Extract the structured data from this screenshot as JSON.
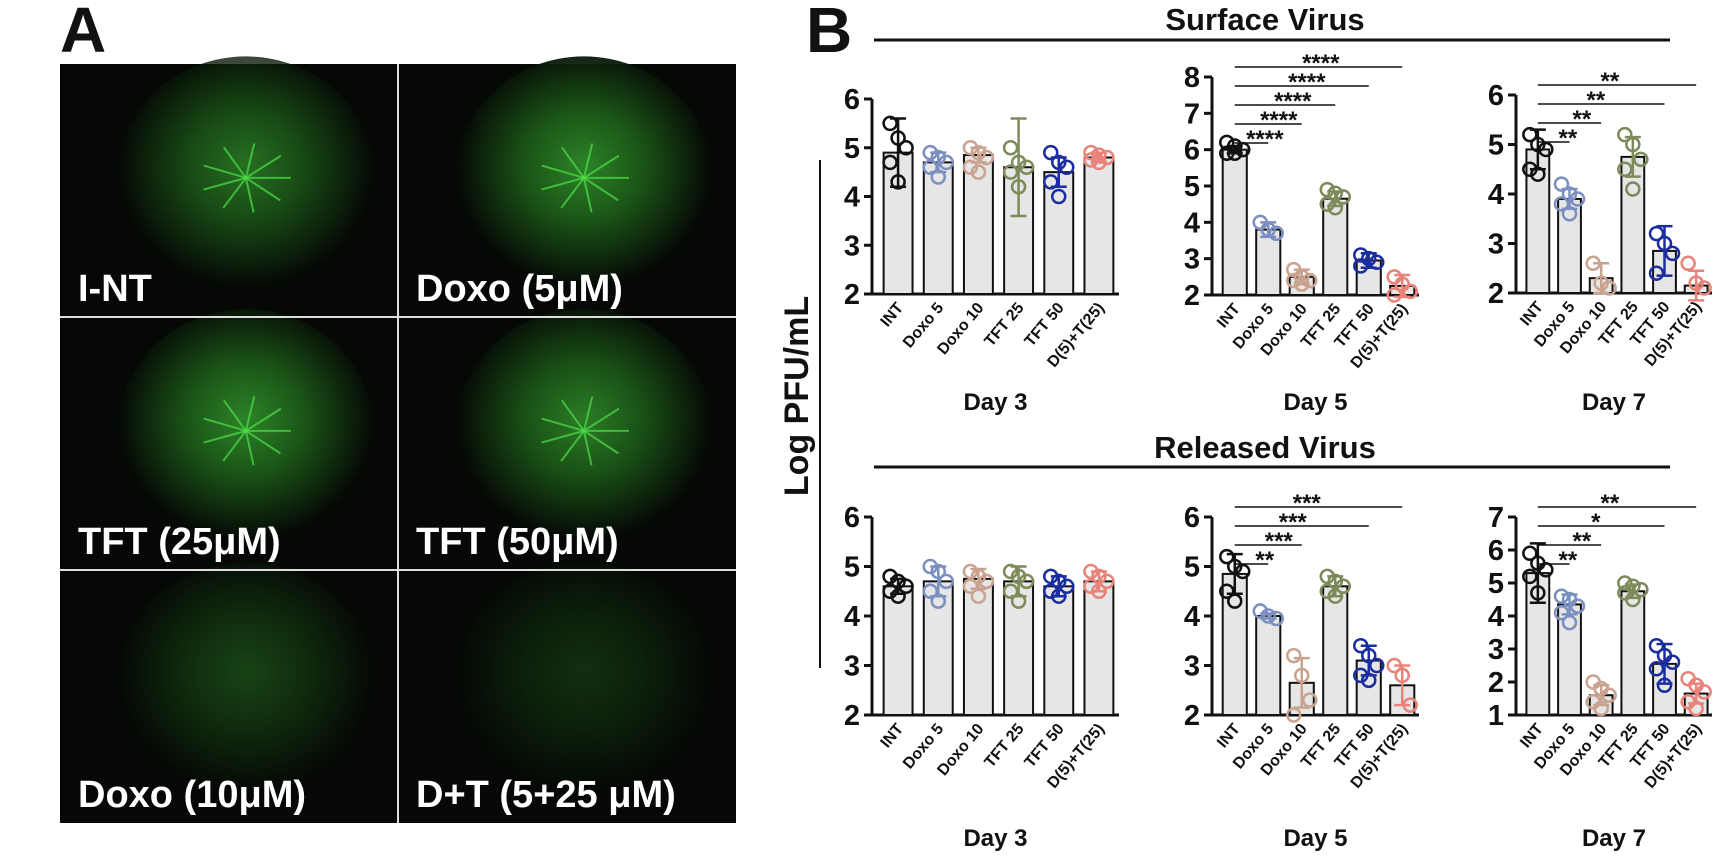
{
  "panel_a": {
    "label": "A",
    "images": [
      "I-NT",
      "Doxo (5μM)",
      "TFT (25μM)",
      "TFT (50μM)",
      "Doxo (10μM)",
      "D+T (5+25 μM)"
    ]
  },
  "panel_b": {
    "label": "B",
    "y_label": "Log PFU/mL",
    "groups": [
      "Surface Virus",
      "Released Virus"
    ]
  },
  "chart_data": [
    {
      "type": "bar",
      "group": 0,
      "x_label": "Day 3",
      "categories": [
        "INT",
        "Doxo 5",
        "Doxo 10",
        "TFT 25",
        "TFT 50",
        "D(5)+T(25)"
      ],
      "colors": [
        "#111111",
        "#7b8fc0",
        "#c9a38f",
        "#7d8a5a",
        "#1a2ea0",
        "#e8837a"
      ],
      "values": [
        4.9,
        4.7,
        4.85,
        4.6,
        4.5,
        4.8
      ],
      "errors": [
        0.7,
        0.2,
        0.15,
        1.0,
        0.3,
        0.1
      ],
      "points": [
        [
          5.5,
          5.2,
          5.0,
          4.7,
          4.3
        ],
        [
          4.9,
          4.8,
          4.7,
          4.6,
          4.4
        ],
        [
          5.0,
          4.9,
          4.8,
          4.6,
          4.5
        ],
        [
          5.0,
          4.7,
          4.6,
          4.5,
          4.2
        ],
        [
          4.9,
          4.7,
          4.6,
          4.3,
          4.0
        ],
        [
          4.9,
          4.85,
          4.8,
          4.75,
          4.7
        ]
      ],
      "ylim": [
        2,
        6
      ],
      "yticks": [
        2,
        3,
        4,
        5,
        6
      ],
      "annotations": []
    },
    {
      "type": "bar",
      "group": 0,
      "x_label": "Day 5",
      "categories": [
        "INT",
        "Doxo 5",
        "Doxo 10",
        "TFT 25",
        "TFT 50",
        "D(5)+T(25)"
      ],
      "colors": [
        "#111111",
        "#7b8fc0",
        "#c9a38f",
        "#7d8a5a",
        "#1a2ea0",
        "#e8837a"
      ],
      "values": [
        6.0,
        3.8,
        2.5,
        4.65,
        2.95,
        2.25
      ],
      "errors": [
        0.1,
        0.2,
        0.2,
        0.2,
        0.2,
        0.3
      ],
      "points": [
        [
          6.2,
          6.1,
          6.0,
          5.9,
          5.9
        ],
        [
          4.0,
          3.8,
          3.7
        ],
        [
          2.7,
          2.5,
          2.4,
          2.4,
          2.3
        ],
        [
          4.9,
          4.8,
          4.7,
          4.5,
          4.4
        ],
        [
          3.1,
          3.0,
          2.9,
          2.8
        ],
        [
          2.5,
          2.3,
          2.1,
          2.0
        ]
      ],
      "ylim": [
        2,
        8
      ],
      "yticks": [
        2,
        3,
        4,
        5,
        6,
        7,
        8
      ],
      "annotations": [
        {
          "label": "****",
          "between": [
            "INT",
            "Doxo 5"
          ]
        },
        {
          "label": "****",
          "between": [
            "INT",
            "Doxo 10"
          ]
        },
        {
          "label": "****",
          "between": [
            "INT",
            "TFT 25"
          ]
        },
        {
          "label": "****",
          "between": [
            "INT",
            "TFT 50"
          ]
        },
        {
          "label": "****",
          "between": [
            "INT",
            "D(5)+T(25)"
          ]
        }
      ]
    },
    {
      "type": "bar",
      "group": 0,
      "x_label": "Day 7",
      "categories": [
        "INT",
        "Doxo 5",
        "Doxo 10",
        "TFT 25",
        "TFT 50",
        "D(5)+T(25)"
      ],
      "colors": [
        "#111111",
        "#7b8fc0",
        "#c9a38f",
        "#7d8a5a",
        "#1a2ea0",
        "#e8837a"
      ],
      "values": [
        4.9,
        3.9,
        2.3,
        4.75,
        2.85,
        2.15
      ],
      "errors": [
        0.4,
        0.2,
        0.3,
        0.4,
        0.5,
        0.3
      ],
      "points": [
        [
          5.2,
          5.0,
          4.9,
          4.5,
          4.4
        ],
        [
          4.2,
          4.0,
          3.9,
          3.8,
          3.6
        ],
        [
          2.6,
          2.2,
          2.1
        ],
        [
          5.2,
          5.0,
          4.7,
          4.5,
          4.1
        ],
        [
          3.2,
          3.0,
          2.8,
          2.4
        ],
        [
          2.6,
          2.2,
          2.1
        ]
      ],
      "ylim": [
        2,
        6
      ],
      "yticks": [
        2,
        3,
        4,
        5,
        6
      ],
      "annotations": [
        {
          "label": "**",
          "between": [
            "INT",
            "Doxo 5"
          ]
        },
        {
          "label": "**",
          "between": [
            "INT",
            "Doxo 10"
          ]
        },
        {
          "label": "**",
          "between": [
            "INT",
            "TFT 50"
          ]
        },
        {
          "label": "**",
          "between": [
            "INT",
            "D(5)+T(25)"
          ]
        }
      ]
    },
    {
      "type": "bar",
      "group": 1,
      "x_label": "Day 3",
      "categories": [
        "INT",
        "Doxo 5",
        "Doxo 10",
        "TFT 25",
        "TFT 50",
        "D(5)+T(25)"
      ],
      "colors": [
        "#111111",
        "#7b8fc0",
        "#c9a38f",
        "#7d8a5a",
        "#1a2ea0",
        "#e8837a"
      ],
      "values": [
        4.6,
        4.7,
        4.75,
        4.7,
        4.6,
        4.7
      ],
      "errors": [
        0.15,
        0.3,
        0.2,
        0.3,
        0.2,
        0.2
      ],
      "points": [
        [
          4.8,
          4.7,
          4.6,
          4.5,
          4.4
        ],
        [
          5.0,
          4.9,
          4.7,
          4.5,
          4.3
        ],
        [
          4.9,
          4.8,
          4.7,
          4.6,
          4.4
        ],
        [
          4.9,
          4.8,
          4.7,
          4.5,
          4.3
        ],
        [
          4.8,
          4.7,
          4.6,
          4.5,
          4.4
        ],
        [
          4.9,
          4.8,
          4.7,
          4.6,
          4.5
        ]
      ],
      "ylim": [
        2,
        6
      ],
      "yticks": [
        2,
        3,
        4,
        5,
        6
      ],
      "annotations": []
    },
    {
      "type": "bar",
      "group": 1,
      "x_label": "Day 5",
      "categories": [
        "INT",
        "Doxo 5",
        "Doxo 10",
        "TFT 25",
        "TFT 50",
        "D(5)+T(25)"
      ],
      "colors": [
        "#111111",
        "#7b8fc0",
        "#c9a38f",
        "#7d8a5a",
        "#1a2ea0",
        "#e8837a"
      ],
      "values": [
        4.85,
        4.0,
        2.65,
        4.6,
        3.1,
        2.6
      ],
      "errors": [
        0.4,
        0.05,
        0.5,
        0.2,
        0.3,
        0.4
      ],
      "points": [
        [
          5.2,
          5.0,
          4.9,
          4.5,
          4.3
        ],
        [
          4.1,
          4.0,
          3.95
        ],
        [
          3.2,
          2.8,
          2.3,
          2.0
        ],
        [
          4.8,
          4.7,
          4.6,
          4.5,
          4.4
        ],
        [
          3.4,
          3.2,
          3.0,
          2.8,
          2.7
        ],
        [
          3.0,
          2.8,
          2.2
        ]
      ],
      "ylim": [
        2,
        6
      ],
      "yticks": [
        2,
        3,
        4,
        5,
        6
      ],
      "annotations": [
        {
          "label": "**",
          "between": [
            "INT",
            "Doxo 5"
          ]
        },
        {
          "label": "***",
          "between": [
            "INT",
            "Doxo 10"
          ]
        },
        {
          "label": "***",
          "between": [
            "INT",
            "TFT 50"
          ]
        },
        {
          "label": "***",
          "between": [
            "INT",
            "D(5)+T(25)"
          ]
        }
      ]
    },
    {
      "type": "bar",
      "group": 1,
      "x_label": "Day 7",
      "categories": [
        "INT",
        "Doxo 5",
        "Doxo 10",
        "TFT 25",
        "TFT 50",
        "D(5)+T(25)"
      ],
      "colors": [
        "#111111",
        "#7b8fc0",
        "#c9a38f",
        "#7d8a5a",
        "#1a2ea0",
        "#e8837a"
      ],
      "values": [
        5.3,
        4.35,
        1.6,
        4.75,
        2.55,
        1.65
      ],
      "errors": [
        0.9,
        0.3,
        0.3,
        0.2,
        0.6,
        0.3
      ],
      "points": [
        [
          5.9,
          5.6,
          5.4,
          5.2,
          4.7
        ],
        [
          4.6,
          4.5,
          4.3,
          4.1,
          3.8
        ],
        [
          2.0,
          1.8,
          1.6,
          1.4,
          1.2
        ],
        [
          5.0,
          4.9,
          4.8,
          4.7,
          4.5
        ],
        [
          3.1,
          2.8,
          2.6,
          2.4,
          1.9
        ],
        [
          2.1,
          1.9,
          1.7,
          1.4,
          1.2
        ]
      ],
      "ylim": [
        1,
        7
      ],
      "yticks": [
        1,
        2,
        3,
        4,
        5,
        6,
        7
      ],
      "annotations": [
        {
          "label": "**",
          "between": [
            "INT",
            "Doxo 5"
          ]
        },
        {
          "label": "**",
          "between": [
            "INT",
            "Doxo 10"
          ]
        },
        {
          "label": "*",
          "between": [
            "INT",
            "TFT 50"
          ]
        },
        {
          "label": "**",
          "between": [
            "INT",
            "D(5)+T(25)"
          ]
        }
      ]
    }
  ]
}
